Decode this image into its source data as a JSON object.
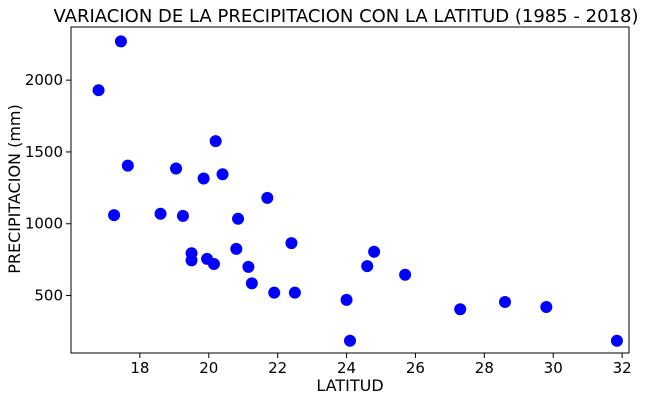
{
  "chart_data": {
    "type": "scatter",
    "title": "VARIACION DE LA PRECIPITACION CON LA LATITUD (1985 - 2018)",
    "xlabel": "LATITUD",
    "ylabel": "PRECIPITACION (mm)",
    "xlim": [
      16.0,
      32.2
    ],
    "ylim": [
      100,
      2370
    ],
    "xticks": [
      18,
      20,
      22,
      24,
      26,
      28,
      30,
      32
    ],
    "yticks": [
      500,
      1000,
      1500,
      2000
    ],
    "grid": false,
    "marker_color": "#0000ff",
    "points": [
      {
        "x": 16.8,
        "y": 1930
      },
      {
        "x": 17.25,
        "y": 1060
      },
      {
        "x": 17.45,
        "y": 2270
      },
      {
        "x": 17.65,
        "y": 1405
      },
      {
        "x": 18.6,
        "y": 1070
      },
      {
        "x": 19.05,
        "y": 1385
      },
      {
        "x": 19.25,
        "y": 1055
      },
      {
        "x": 19.5,
        "y": 795
      },
      {
        "x": 19.5,
        "y": 745
      },
      {
        "x": 19.85,
        "y": 1315
      },
      {
        "x": 19.95,
        "y": 755
      },
      {
        "x": 20.15,
        "y": 720
      },
      {
        "x": 20.2,
        "y": 1575
      },
      {
        "x": 20.4,
        "y": 1345
      },
      {
        "x": 20.8,
        "y": 825
      },
      {
        "x": 20.85,
        "y": 1035
      },
      {
        "x": 21.15,
        "y": 700
      },
      {
        "x": 21.25,
        "y": 585
      },
      {
        "x": 21.7,
        "y": 1180
      },
      {
        "x": 21.9,
        "y": 520
      },
      {
        "x": 22.4,
        "y": 865
      },
      {
        "x": 22.5,
        "y": 520
      },
      {
        "x": 24.0,
        "y": 470
      },
      {
        "x": 24.1,
        "y": 185
      },
      {
        "x": 24.6,
        "y": 705
      },
      {
        "x": 24.8,
        "y": 805
      },
      {
        "x": 25.7,
        "y": 645
      },
      {
        "x": 27.3,
        "y": 405
      },
      {
        "x": 28.6,
        "y": 455
      },
      {
        "x": 29.8,
        "y": 420
      },
      {
        "x": 31.85,
        "y": 185
      }
    ]
  }
}
